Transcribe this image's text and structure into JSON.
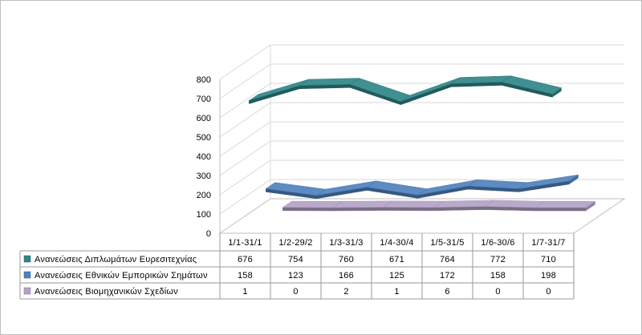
{
  "chart_data": {
    "type": "line",
    "three_d": true,
    "categories": [
      "1/1-31/1",
      "1/2-29/2",
      "1/3-31/3",
      "1/4-30/4",
      "1/5-31/5",
      "1/6-30/6",
      "1/7-31/7"
    ],
    "series": [
      {
        "name": "Ανανεώσεις Διπλωμάτων Ευρεσιτεχνίας",
        "values": [
          676,
          754,
          760,
          671,
          764,
          772,
          710
        ],
        "color": "#2F8587"
      },
      {
        "name": "Ανανεώσεις Εθνικών Εμπορικών Σημάτων",
        "values": [
          158,
          123,
          166,
          125,
          172,
          158,
          198
        ],
        "color": "#4F81BD"
      },
      {
        "name": "Ανανεώσεις Βιομηχανικών Σχεδίων",
        "values": [
          1,
          0,
          2,
          1,
          6,
          0,
          0
        ],
        "color": "#B3A2C7"
      }
    ],
    "yticks": [
      0,
      100,
      200,
      300,
      400,
      500,
      600,
      700,
      800
    ],
    "ylim": [
      0,
      800
    ],
    "grid": true,
    "legend": "bottom"
  }
}
